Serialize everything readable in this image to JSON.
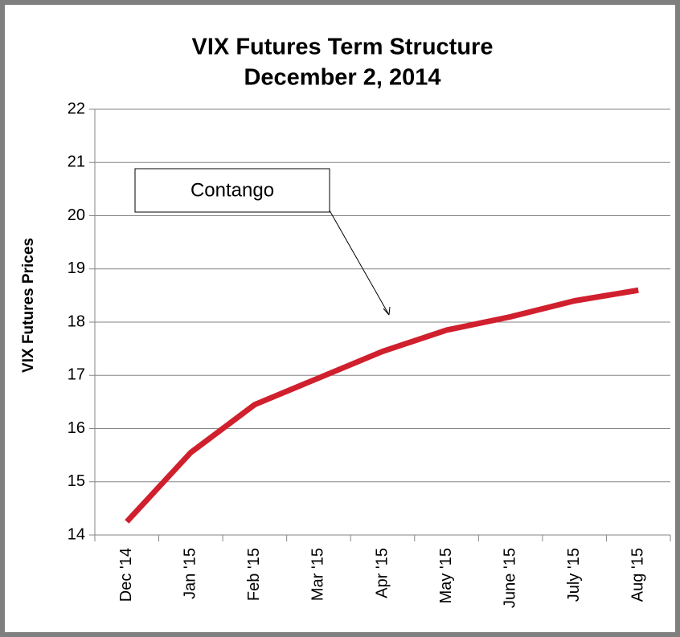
{
  "chart_data": {
    "type": "line",
    "title": "VIX Futures Term Structure",
    "subtitle": "December 2, 2014",
    "y_label": "VIX Futures Prices",
    "categories": [
      "Dec '14",
      "Jan '15",
      "Feb '15",
      "Mar '15",
      "Apr '15",
      "May '15",
      "June '15",
      "July '15",
      "Aug '15"
    ],
    "series": [
      {
        "name": "VIX Futures",
        "color": "#d0202e",
        "values": [
          14.25,
          15.55,
          16.45,
          16.95,
          17.45,
          17.85,
          18.1,
          18.4,
          18.6
        ]
      }
    ],
    "ylim": [
      14,
      22
    ],
    "yticks": [
      14,
      15,
      16,
      17,
      18,
      19,
      20,
      21,
      22
    ],
    "grid": true,
    "annotation": "Contango"
  }
}
